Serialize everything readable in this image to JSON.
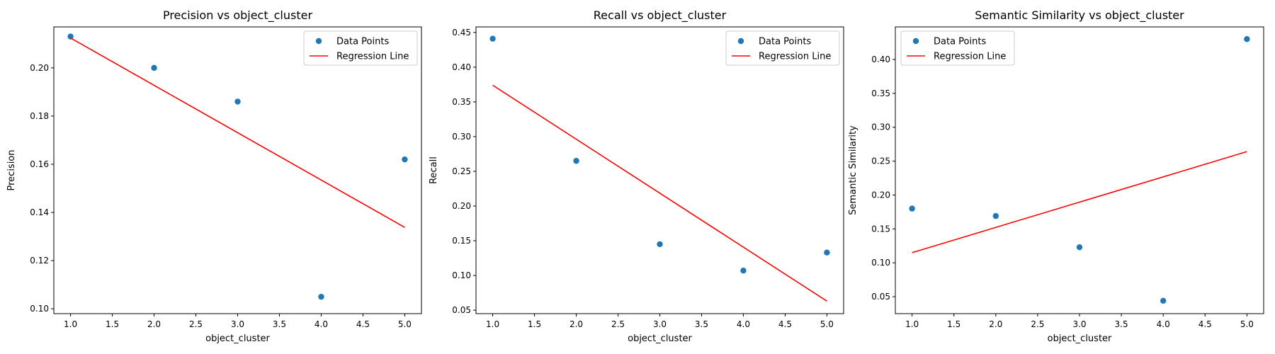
{
  "chart_data": [
    {
      "type": "scatter",
      "title": "Precision vs object_cluster",
      "xlabel": "object_cluster",
      "ylabel": "Precision",
      "xlim": [
        0.8,
        5.2
      ],
      "ylim": [
        0.098,
        0.217
      ],
      "xticks": [
        "1.0",
        "1.5",
        "2.0",
        "2.5",
        "3.0",
        "3.5",
        "4.0",
        "4.5",
        "5.0"
      ],
      "yticks": [
        "0.10",
        "0.12",
        "0.14",
        "0.16",
        "0.18",
        "0.20"
      ],
      "grid": false,
      "legend_position": "top-right",
      "series": [
        {
          "name": "Data Points",
          "kind": "scatter",
          "color": "#1f77b4",
          "x": [
            1,
            2,
            3,
            4,
            5
          ],
          "y": [
            0.213,
            0.2,
            0.186,
            0.105,
            0.162
          ]
        },
        {
          "name": "Regression Line",
          "kind": "line",
          "color": "#ff0000",
          "x": [
            1,
            5
          ],
          "y": [
            0.2124,
            0.1338
          ]
        }
      ]
    },
    {
      "type": "scatter",
      "title": "Recall vs object_cluster",
      "xlabel": "object_cluster",
      "ylabel": "Recall",
      "xlim": [
        0.8,
        5.2
      ],
      "ylim": [
        0.045,
        0.458
      ],
      "xticks": [
        "1.0",
        "1.5",
        "2.0",
        "2.5",
        "3.0",
        "3.5",
        "4.0",
        "4.5",
        "5.0"
      ],
      "yticks": [
        "0.05",
        "0.10",
        "0.15",
        "0.20",
        "0.25",
        "0.30",
        "0.35",
        "0.40",
        "0.45"
      ],
      "grid": false,
      "legend_position": "top-right",
      "series": [
        {
          "name": "Data Points",
          "kind": "scatter",
          "color": "#1f77b4",
          "x": [
            1,
            2,
            3,
            4,
            5
          ],
          "y": [
            0.441,
            0.265,
            0.145,
            0.107,
            0.133
          ]
        },
        {
          "name": "Regression Line",
          "kind": "line",
          "color": "#ff0000",
          "x": [
            1,
            5
          ],
          "y": [
            0.374,
            0.063
          ]
        }
      ]
    },
    {
      "type": "scatter",
      "title": "Semantic Similarity vs object_cluster",
      "xlabel": "object_cluster",
      "ylabel": "Semantic Similarity",
      "xlim": [
        0.8,
        5.2
      ],
      "ylim": [
        0.025,
        0.448
      ],
      "xticks": [
        "1.0",
        "1.5",
        "2.0",
        "2.5",
        "3.0",
        "3.5",
        "4.0",
        "4.5",
        "5.0"
      ],
      "yticks": [
        "0.05",
        "0.10",
        "0.15",
        "0.20",
        "0.25",
        "0.30",
        "0.35",
        "0.40"
      ],
      "grid": false,
      "legend_position": "top-left",
      "series": [
        {
          "name": "Data Points",
          "kind": "scatter",
          "color": "#1f77b4",
          "x": [
            1,
            2,
            3,
            4,
            5
          ],
          "y": [
            0.18,
            0.169,
            0.123,
            0.044,
            0.43
          ]
        },
        {
          "name": "Regression Line",
          "kind": "line",
          "color": "#ff0000",
          "x": [
            1,
            5
          ],
          "y": [
            0.115,
            0.264
          ]
        }
      ]
    }
  ]
}
